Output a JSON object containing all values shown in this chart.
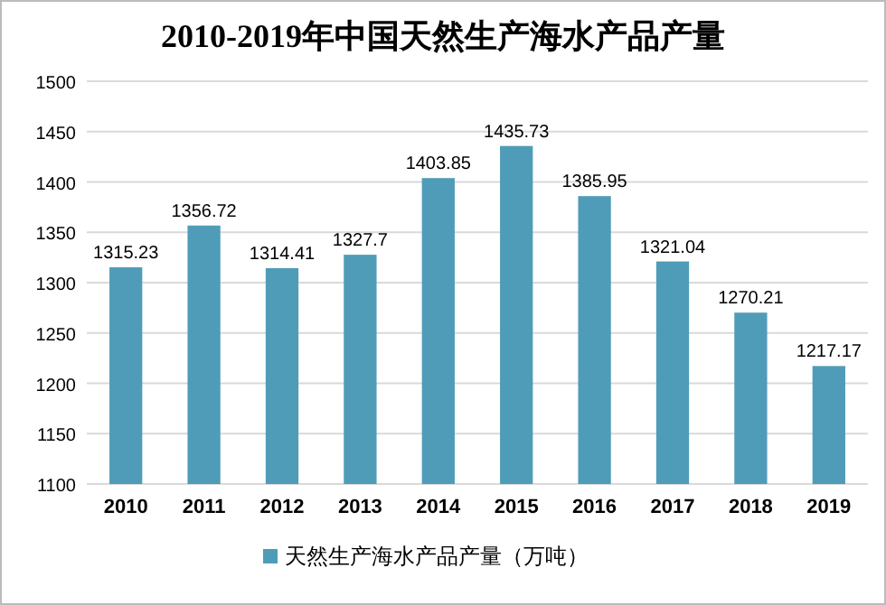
{
  "chart_data": {
    "type": "bar",
    "title": "2010-2019年中国天然生产海水产品产量",
    "categories": [
      "2010",
      "2011",
      "2012",
      "2013",
      "2014",
      "2015",
      "2016",
      "2017",
      "2018",
      "2019"
    ],
    "series": [
      {
        "name": "天然生产海水产品产量（万吨）",
        "color": "#4f9cb8",
        "values": [
          1315.23,
          1356.72,
          1314.41,
          1327.7,
          1403.85,
          1435.73,
          1385.95,
          1321.04,
          1270.21,
          1217.17
        ]
      }
    ],
    "ylim": [
      1100,
      1500
    ],
    "yticks": [
      1100,
      1150,
      1200,
      1250,
      1300,
      1350,
      1400,
      1450,
      1500
    ],
    "grid": "y",
    "legend": "bottom",
    "data_labels": true
  }
}
